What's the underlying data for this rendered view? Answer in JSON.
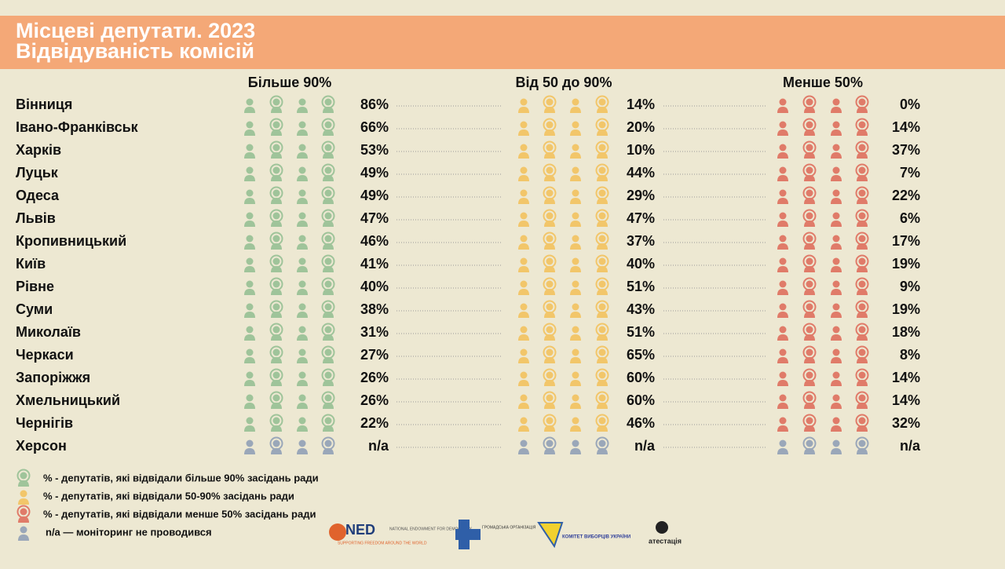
{
  "header": {
    "title": "Місцеві депутати. 2023",
    "subtitle": "Відвідуваність комісій"
  },
  "table": {
    "columns": [
      {
        "label": "Більше 90%",
        "color": "#9fc49a"
      },
      {
        "label": "Від 50 до 90%",
        "color": "#f2c66a"
      },
      {
        "label": "Менше 50%",
        "color": "#e07b69"
      }
    ],
    "rows": [
      {
        "city": "Вінниця",
        "values": [
          "86%",
          "14%",
          "0%"
        ]
      },
      {
        "city": "Івано-Франківськ",
        "values": [
          "66%",
          "20%",
          "14%"
        ]
      },
      {
        "city": "Харків",
        "values": [
          "53%",
          "10%",
          "37%"
        ]
      },
      {
        "city": "Луцьк",
        "values": [
          "49%",
          "44%",
          "7%"
        ]
      },
      {
        "city": "Одеса",
        "values": [
          "49%",
          "29%",
          "22%"
        ]
      },
      {
        "city": "Львів",
        "values": [
          "47%",
          "47%",
          "6%"
        ]
      },
      {
        "city": "Кропивницький",
        "values": [
          "46%",
          "37%",
          "17%"
        ]
      },
      {
        "city": "Київ",
        "values": [
          "41%",
          "40%",
          "19%"
        ]
      },
      {
        "city": "Рівне",
        "values": [
          "40%",
          "51%",
          "9%"
        ]
      },
      {
        "city": "Суми",
        "values": [
          "38%",
          "43%",
          "19%"
        ]
      },
      {
        "city": "Миколаїв",
        "values": [
          "31%",
          "51%",
          "18%"
        ]
      },
      {
        "city": "Черкаси",
        "values": [
          "27%",
          "65%",
          "8%"
        ]
      },
      {
        "city": "Запоріжжя",
        "values": [
          "26%",
          "60%",
          "14%"
        ]
      },
      {
        "city": "Хмельницький",
        "values": [
          "26%",
          "60%",
          "14%"
        ]
      },
      {
        "city": "Чернігів",
        "values": [
          "22%",
          "46%",
          "32%"
        ]
      },
      {
        "city": "Херсон",
        "values": [
          "n/a",
          "n/a",
          "n/a"
        ],
        "color": "#9aa7b9"
      }
    ]
  },
  "legend": [
    {
      "color": "#9fc49a",
      "text": "% -  депутатів, які відвідали більше 90% засідань ради"
    },
    {
      "color": "#f2c66a",
      "text": "% - депутатів, які відвідали 50-90% засідань ради"
    },
    {
      "color": "#e07b69",
      "text": "% - депутатів, які відвідали менше 50% засідань ради"
    },
    {
      "color": "#9aa7b9",
      "text": "n/a — моніторинг не проводився"
    }
  ],
  "logos": [
    "NED",
    "NATIONAL ENDOWMENT FOR DEMOCRACY",
    "SUPPORTING FREEDOM AROUND THE WORLD",
    "ГРОМАДСЬКА ОРГАНІЗАЦІЯ",
    "КОМІТЕТ ВИБОРЦІВ УКРАЇНИ",
    "атестація"
  ]
}
